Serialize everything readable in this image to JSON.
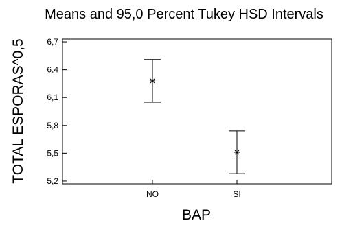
{
  "chart_data": {
    "type": "scatter",
    "title": "Means and 95,0 Percent Tukey HSD Intervals",
    "xlabel": "BAP",
    "ylabel": "TOTAL ESPORAS^0,5",
    "categories": [
      "NO",
      "SI"
    ],
    "yticks": [
      "6,7",
      "6,4",
      "6,1",
      "5,8",
      "5,5",
      "5,2"
    ],
    "ylim": [
      5.17,
      6.73
    ],
    "series": [
      {
        "means": [
          6.28,
          5.51
        ],
        "lower": [
          6.05,
          5.28
        ],
        "upper": [
          6.51,
          5.74
        ]
      }
    ],
    "grid": false,
    "legend": "none"
  }
}
